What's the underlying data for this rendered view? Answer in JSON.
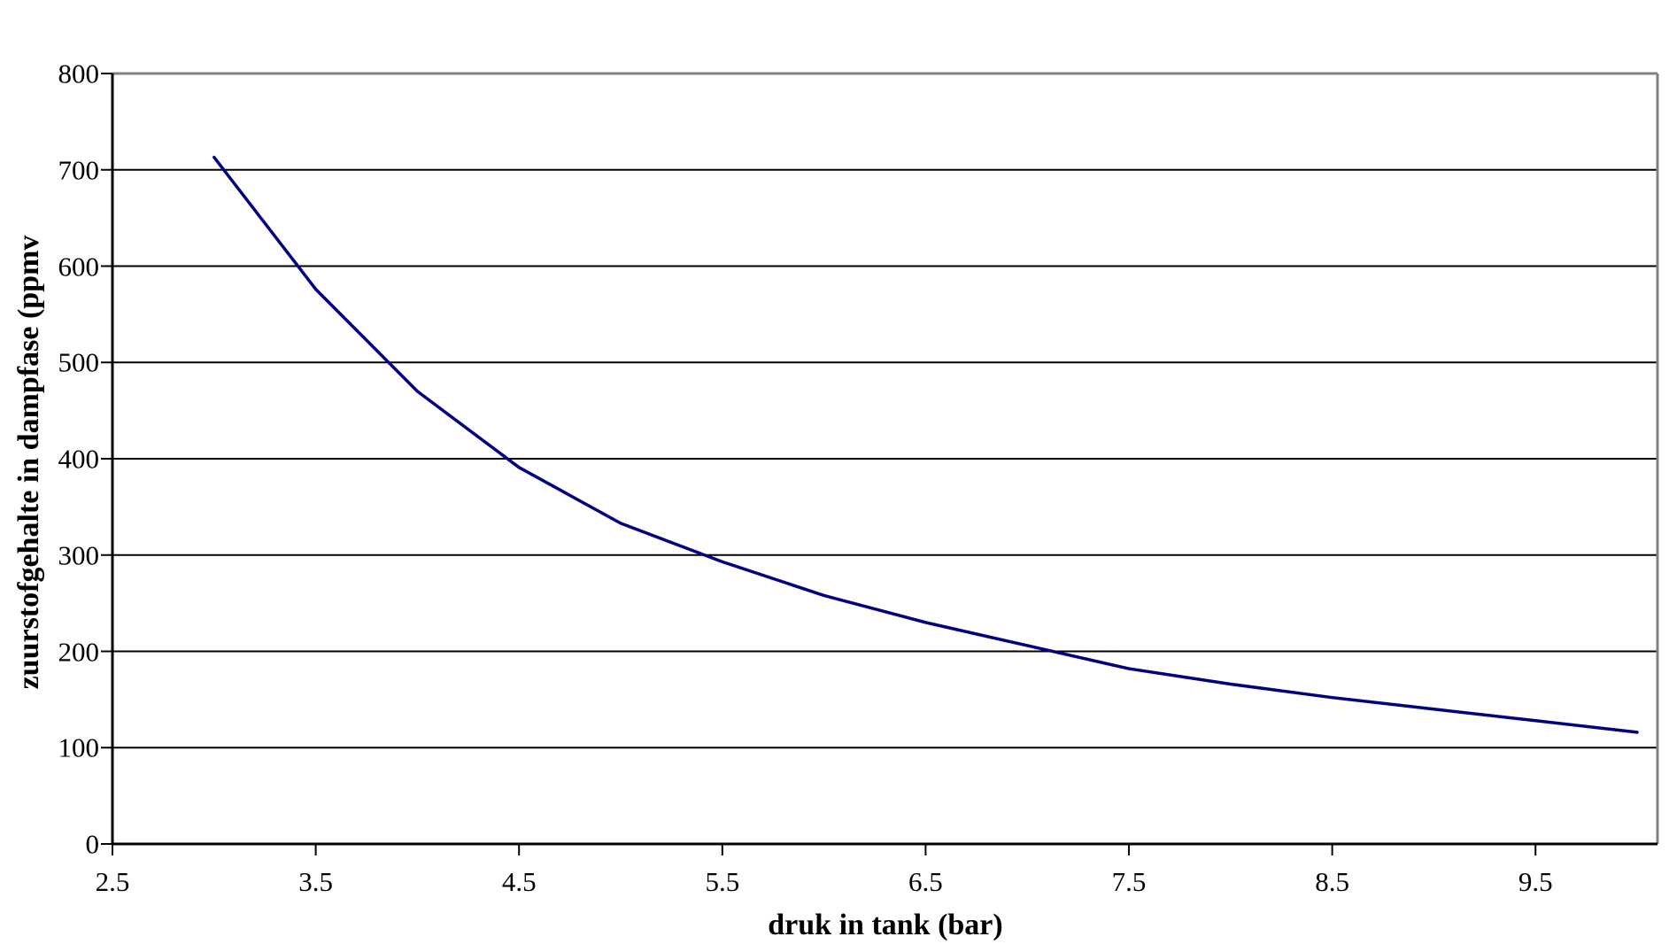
{
  "chart_data": {
    "type": "line",
    "title": "",
    "xlabel": "druk in tank (bar)",
    "ylabel": "zuurstofgehalte in dampfase (ppmv",
    "xlim": [
      2.5,
      10.1
    ],
    "ylim": [
      0,
      800
    ],
    "x_ticks": [
      2.5,
      3.5,
      4.5,
      5.5,
      6.5,
      7.5,
      8.5,
      9.5
    ],
    "x_tick_labels": [
      "2.5",
      "3.5",
      "4.5",
      "5.5",
      "6.5",
      "7.5",
      "8.5",
      "9.5"
    ],
    "y_ticks": [
      0,
      100,
      200,
      300,
      400,
      500,
      600,
      700,
      800
    ],
    "y_tick_labels": [
      "0",
      "100",
      "200",
      "300",
      "400",
      "500",
      "600",
      "700",
      "800"
    ],
    "grid": "horizontal-major-gridlines",
    "legend": "none",
    "series": [
      {
        "name": "zuurstofgehalte in dampfase",
        "color": "#000080",
        "x": [
          3.0,
          3.5,
          4.0,
          4.5,
          5.0,
          5.5,
          6.0,
          6.5,
          7.0,
          7.5,
          8.0,
          8.5,
          9.0,
          9.5,
          10.0
        ],
        "y": [
          713,
          576,
          470,
          391,
          333,
          293,
          258,
          230,
          206,
          182,
          166,
          152,
          140,
          128,
          116
        ]
      }
    ],
    "colors": {
      "background": "#ffffff",
      "gridline": "#000000",
      "axis": "#000000",
      "plot_border": "#808080",
      "text": "#000000"
    }
  }
}
